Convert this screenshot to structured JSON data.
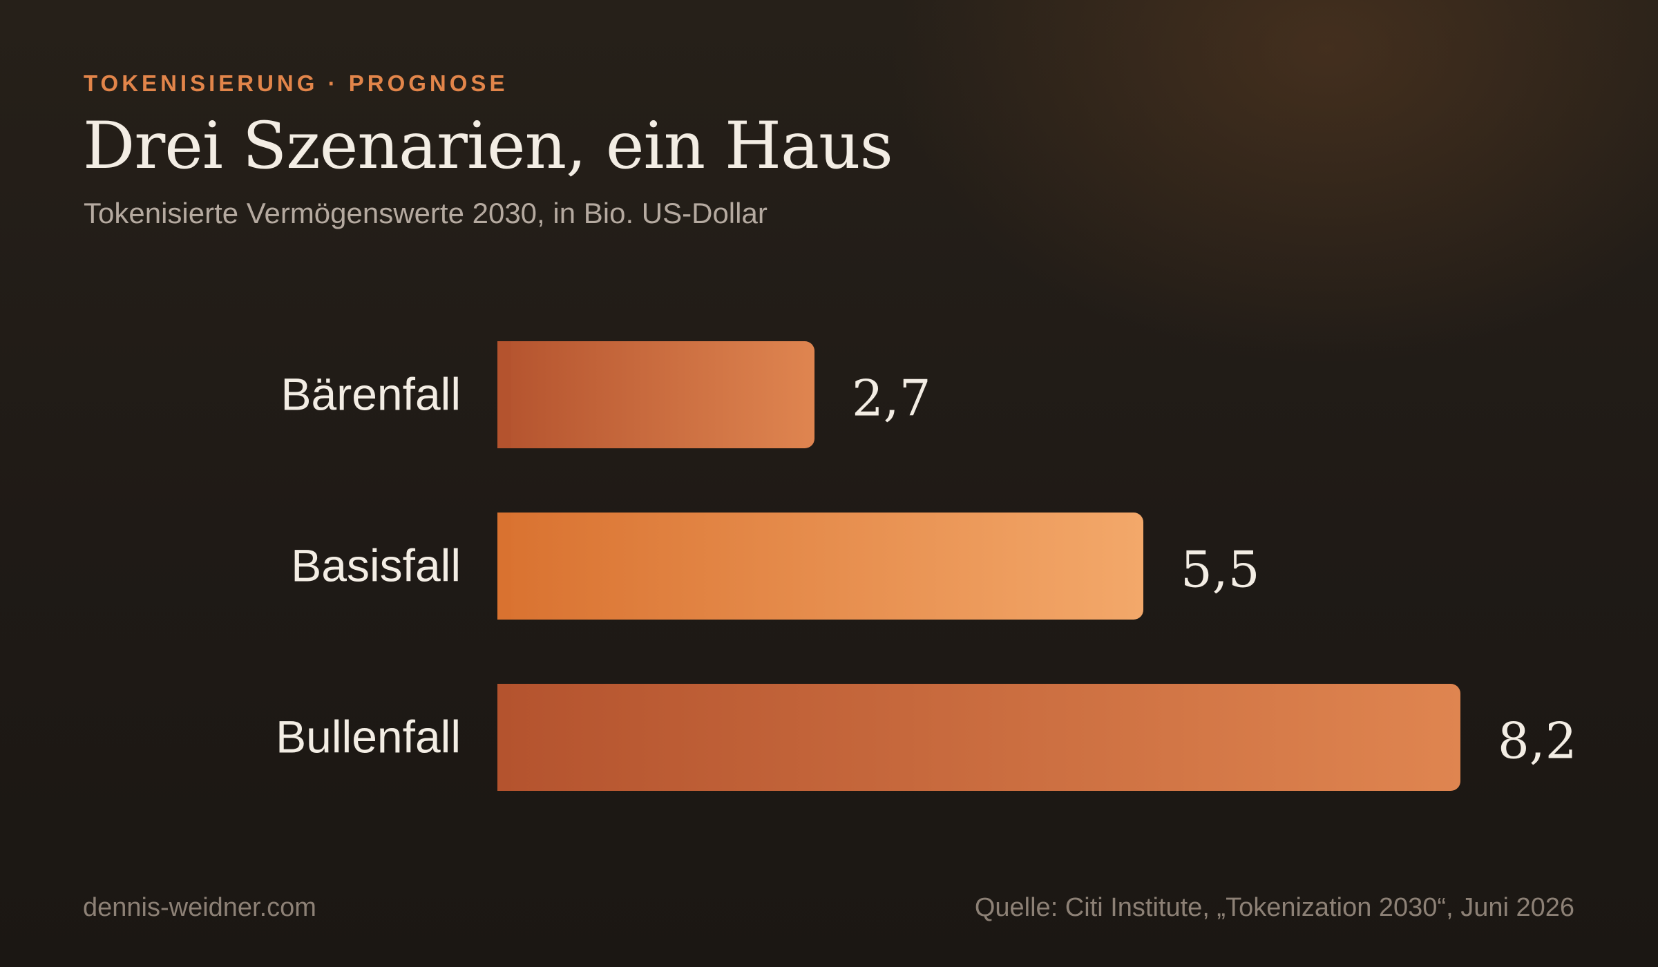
{
  "colors": {
    "accent": "#e2854a",
    "bar_standard_start": "#b4532e",
    "bar_standard_end": "#df8550",
    "bar_highlight_start": "#d97230",
    "bar_highlight_end": "#f3a86a",
    "text_primary": "#f3ede4",
    "text_muted": "#8d8176"
  },
  "header": {
    "kicker": "TOKENISIERUNG · PROGNOSE",
    "title": "Drei Szenarien, ein Haus",
    "subtitle": "Tokenisierte Vermögenswerte 2030, in Bio. US-Dollar"
  },
  "footer": {
    "site": "dennis-weidner.com",
    "source": "Quelle: Citi Institute, „Tokenization 2030“, Juni 2026"
  },
  "chart_data": {
    "type": "bar",
    "orientation": "horizontal",
    "title": "Drei Szenarien, ein Haus",
    "subtitle": "Tokenisierte Vermögenswerte 2030, in Bio. US-Dollar",
    "categories": [
      "Bärenfall",
      "Basisfall",
      "Bullenfall"
    ],
    "values": [
      2.7,
      5.5,
      8.2
    ],
    "value_labels": [
      "2,7",
      "5,5",
      "8,2"
    ],
    "highlighted_category": "Basisfall",
    "xlim": [
      0,
      8.2
    ],
    "grid": false,
    "legend": "none"
  }
}
